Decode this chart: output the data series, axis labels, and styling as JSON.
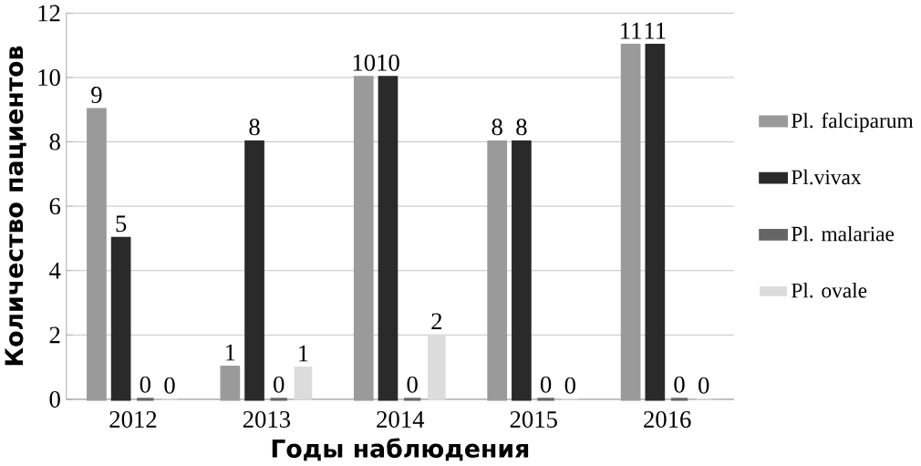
{
  "chart_data": {
    "type": "bar",
    "xlabel": "Годы наблюдения",
    "ylabel": "Количество пациентов",
    "categories": [
      "2012",
      "2013",
      "2014",
      "2015",
      "2016"
    ],
    "series": [
      {
        "name": "Pl. falciparum",
        "color": "#9a9a9a",
        "values": [
          9,
          1,
          10,
          8,
          11
        ]
      },
      {
        "name": "Pl.vivax",
        "color": "#2a2a2a",
        "values": [
          5,
          8,
          10,
          8,
          11
        ]
      },
      {
        "name": "Pl. malariae",
        "color": "#666666",
        "values": [
          0,
          0,
          0,
          0,
          0
        ]
      },
      {
        "name": "Pl. ovale",
        "color": "#dcdcdc",
        "values": [
          0,
          1,
          2,
          0,
          0
        ]
      }
    ],
    "ylim": [
      0,
      12
    ],
    "yticks": [
      0,
      2,
      4,
      6,
      8,
      10,
      12
    ],
    "grid": "y",
    "legend": "right",
    "data_labels": true
  }
}
